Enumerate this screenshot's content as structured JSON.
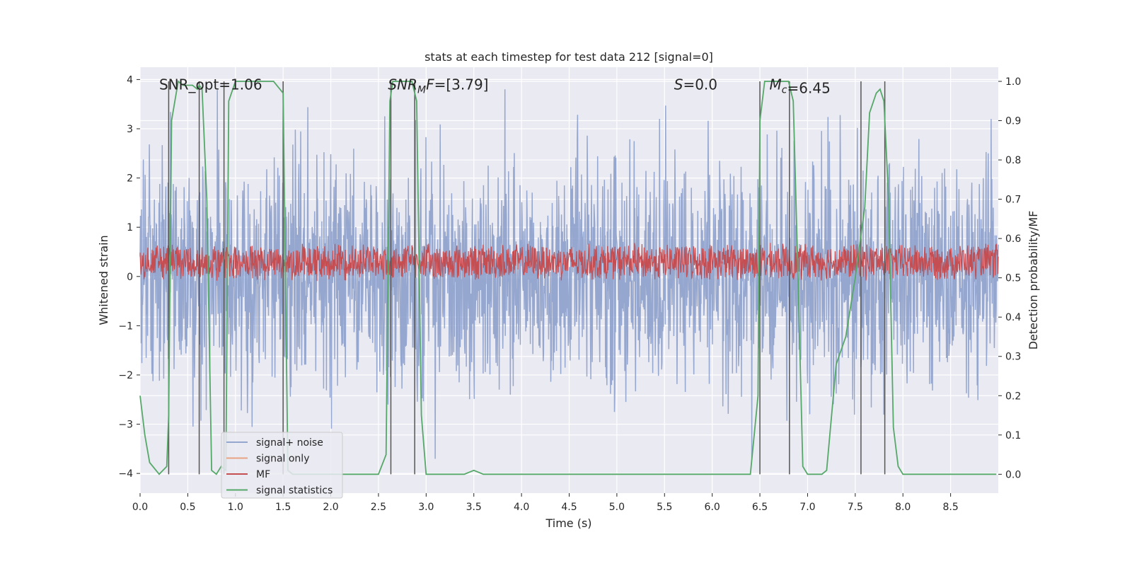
{
  "chart_data": {
    "type": "line",
    "title": "stats at each timestep for test data 212 [signal=0]",
    "xlabel": "Time (s)",
    "ylabel_left": "Whitened strain",
    "ylabel_right": "Detection probability/MF",
    "xlim": [
      0,
      9.0
    ],
    "ylim_left": [
      -4.4,
      4.25
    ],
    "ylim_right": [
      -0.048,
      1.036
    ],
    "x_ticks": [
      0.0,
      0.5,
      1.0,
      1.5,
      2.0,
      2.5,
      3.0,
      3.5,
      4.0,
      4.5,
      5.0,
      5.5,
      6.0,
      6.5,
      7.0,
      7.5,
      8.0,
      8.5
    ],
    "x_tick_labels": [
      "0.0",
      "0.5",
      "1.0",
      "1.5",
      "2.0",
      "2.5",
      "3.0",
      "3.5",
      "4.0",
      "4.5",
      "5.0",
      "5.5",
      "6.0",
      "6.5",
      "7.0",
      "7.5",
      "8.0",
      "8.5"
    ],
    "y_left_ticks": [
      4,
      3,
      2,
      1,
      0,
      -1,
      -2,
      -3,
      -4
    ],
    "y_left_tick_labels": [
      "4",
      "3",
      "2",
      "1",
      "0",
      "−1",
      "−2",
      "−3",
      "−4"
    ],
    "y_right_ticks": [
      1.0,
      0.9,
      0.8,
      0.7,
      0.6,
      0.5,
      0.4,
      0.3,
      0.2,
      0.1,
      0.0
    ],
    "y_right_tick_labels": [
      "1.0",
      "0.9",
      "0.8",
      "0.7",
      "0.6",
      "0.5",
      "0.4",
      "0.3",
      "0.2",
      "0.1",
      "0.0"
    ],
    "grid": true,
    "legend_position": "lower-left",
    "annotations": [
      {
        "text": "SNR_opt=1.06",
        "x": 0.2,
        "y": 3.9,
        "italic": false
      },
      {
        "text_italic": "SNR",
        "text_sub": "M",
        "text_italic2": "F",
        "text_rest": "=[3.79]",
        "x": 2.6,
        "y": 3.9
      },
      {
        "text_italic": "S",
        "text_rest": "=0.0",
        "x": 5.6,
        "y": 3.9
      },
      {
        "text_italic": "M",
        "text_sub": "c",
        "text_rest": "=6.45",
        "x": 6.6,
        "y": 3.9
      }
    ],
    "series": [
      {
        "name": "signal+ noise",
        "color": "#8da0cb",
        "kind": "noise",
        "amplitude_range": [
          -4.0,
          3.8
        ]
      },
      {
        "name": "signal only",
        "color": "#e8a383",
        "kind": "flat",
        "values": []
      },
      {
        "name": "MF",
        "color": "#c44e52",
        "kind": "band",
        "center": 0.3,
        "amplitude": 0.4
      },
      {
        "name": "signal statistics",
        "color": "#55a868",
        "axis": "right",
        "x": [
          0.0,
          0.05,
          0.1,
          0.2,
          0.28,
          0.3,
          0.33,
          0.4,
          0.45,
          0.55,
          0.6,
          0.62,
          0.65,
          0.7,
          0.75,
          0.8,
          0.85,
          0.9,
          0.93,
          1.0,
          1.1,
          1.4,
          1.5,
          1.55,
          1.6,
          1.7,
          2.0,
          2.5,
          2.58,
          2.62,
          2.65,
          2.7,
          2.85,
          2.9,
          2.95,
          3.0,
          3.05,
          3.3,
          3.4,
          3.5,
          3.6,
          3.7,
          4.5,
          5.5,
          6.0,
          6.4,
          6.48,
          6.5,
          6.55,
          6.6,
          6.8,
          6.85,
          6.9,
          6.95,
          7.0,
          7.1,
          7.15,
          7.2,
          7.3,
          7.4,
          7.5,
          7.6,
          7.65,
          7.72,
          7.76,
          7.8,
          7.85,
          7.9,
          7.95,
          8.0,
          8.5,
          8.98
        ],
        "y": [
          0.2,
          0.1,
          0.03,
          0.0,
          0.02,
          0.15,
          0.9,
          1.0,
          0.99,
          0.99,
          0.98,
          0.99,
          0.98,
          0.7,
          0.01,
          0.0,
          0.02,
          0.01,
          0.95,
          1.0,
          1.0,
          1.0,
          0.97,
          0.01,
          0.0,
          0.0,
          0.0,
          0.0,
          0.05,
          0.95,
          1.0,
          1.0,
          1.0,
          0.95,
          0.15,
          0.0,
          0.0,
          0.0,
          0.0,
          0.01,
          0.0,
          0.0,
          0.0,
          0.0,
          0.0,
          0.0,
          0.2,
          0.9,
          1.0,
          1.0,
          1.0,
          0.95,
          0.5,
          0.02,
          0.0,
          0.0,
          0.0,
          0.01,
          0.28,
          0.35,
          0.5,
          0.68,
          0.92,
          0.97,
          0.98,
          0.95,
          0.7,
          0.12,
          0.02,
          0.0,
          0.0,
          0.0
        ]
      },
      {
        "name": "",
        "kind": "vlines",
        "color": "#555555",
        "x": [
          0.3,
          0.62,
          0.88,
          1.5,
          2.63,
          2.88,
          6.5,
          6.81,
          7.56,
          7.81
        ]
      }
    ]
  }
}
